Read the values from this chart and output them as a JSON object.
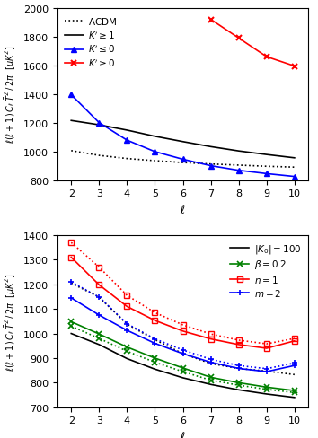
{
  "ell": [
    2,
    3,
    4,
    5,
    6,
    7,
    8,
    9,
    10
  ],
  "upper_data": {
    "lcdm": [
      1005,
      972,
      950,
      935,
      922,
      912,
      904,
      896,
      890
    ],
    "kge1": [
      1215,
      1185,
      1148,
      1105,
      1068,
      1033,
      1003,
      978,
      955
    ],
    "kle0": [
      1395,
      1200,
      1078,
      998,
      945,
      900,
      868,
      845,
      825
    ],
    "kge0_x": [
      null,
      null,
      null,
      null,
      null,
      1920,
      1790,
      1660,
      1595
    ]
  },
  "lower_data": {
    "k0_solid": [
      1000,
      955,
      898,
      855,
      820,
      793,
      771,
      754,
      740
    ],
    "k0_dotted": [
      1205,
      1148,
      1038,
      975,
      918,
      878,
      858,
      847,
      833
    ],
    "beta_solid": [
      1048,
      998,
      945,
      900,
      860,
      822,
      800,
      782,
      768
    ],
    "beta_dotted": [
      1030,
      980,
      928,
      883,
      845,
      810,
      790,
      773,
      760
    ],
    "n1_solid": [
      1310,
      1198,
      1110,
      1053,
      1010,
      978,
      955,
      940,
      970
    ],
    "n1_dotted": [
      1370,
      1270,
      1155,
      1085,
      1035,
      998,
      973,
      958,
      980
    ],
    "m2_solid": [
      1145,
      1075,
      1013,
      960,
      918,
      883,
      858,
      845,
      870
    ],
    "m2_dotted": [
      1210,
      1148,
      1040,
      978,
      933,
      895,
      870,
      857,
      880
    ]
  },
  "upper_ylim": [
    800,
    2000
  ],
  "upper_yticks": [
    800,
    1000,
    1200,
    1400,
    1600,
    1800,
    2000
  ],
  "lower_ylim": [
    700,
    1400
  ],
  "lower_yticks": [
    700,
    800,
    900,
    1000,
    1100,
    1200,
    1300,
    1400
  ],
  "ylabel_upper": "$\\ell(\\ell+1)\\, C_\\ell\\, \\bar{T}^2\\, /\\, 2\\pi$  $[\\mu K^2]$",
  "ylabel_lower": "$\\ell(\\ell+1)\\, C_\\ell\\, \\bar{T}^2\\, /\\, 2\\pi$  $[\\mu K^2]$",
  "xlabel": "$\\ell$",
  "lcdm_label": "$\\Lambda$CDM",
  "kge1_label": "$K' \\geq 1$",
  "kle0_label": "$K' \\leq 0$",
  "kge0_label": "$K' \\geq 0$",
  "k0_label": "$|K_0|=100$",
  "beta_label": "$\\beta=0.2$",
  "n1_label": "$n=1$",
  "m2_label": "$m=2$"
}
